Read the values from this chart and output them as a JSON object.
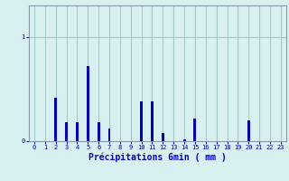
{
  "hours": [
    0,
    1,
    2,
    3,
    4,
    5,
    6,
    7,
    8,
    9,
    10,
    11,
    12,
    13,
    14,
    15,
    16,
    17,
    18,
    19,
    20,
    21,
    22,
    23
  ],
  "values": [
    0,
    0,
    0.42,
    0.18,
    0.18,
    0.72,
    0.18,
    0.12,
    0,
    0,
    0.38,
    0.38,
    0.08,
    0,
    0.02,
    0.22,
    0,
    0,
    0,
    0,
    0.2,
    0,
    0,
    0
  ],
  "bar_color": "#0000cc",
  "bg_color": "#d8f0f0",
  "grid_color": "#a8c8c8",
  "axis_color": "#8899aa",
  "xlabel": "Précipitations 6min ( mm )",
  "ylim": [
    0,
    1.3
  ],
  "xlabel_color": "#0000cc",
  "tick_color": "#0000cc",
  "bar_width": 0.25
}
